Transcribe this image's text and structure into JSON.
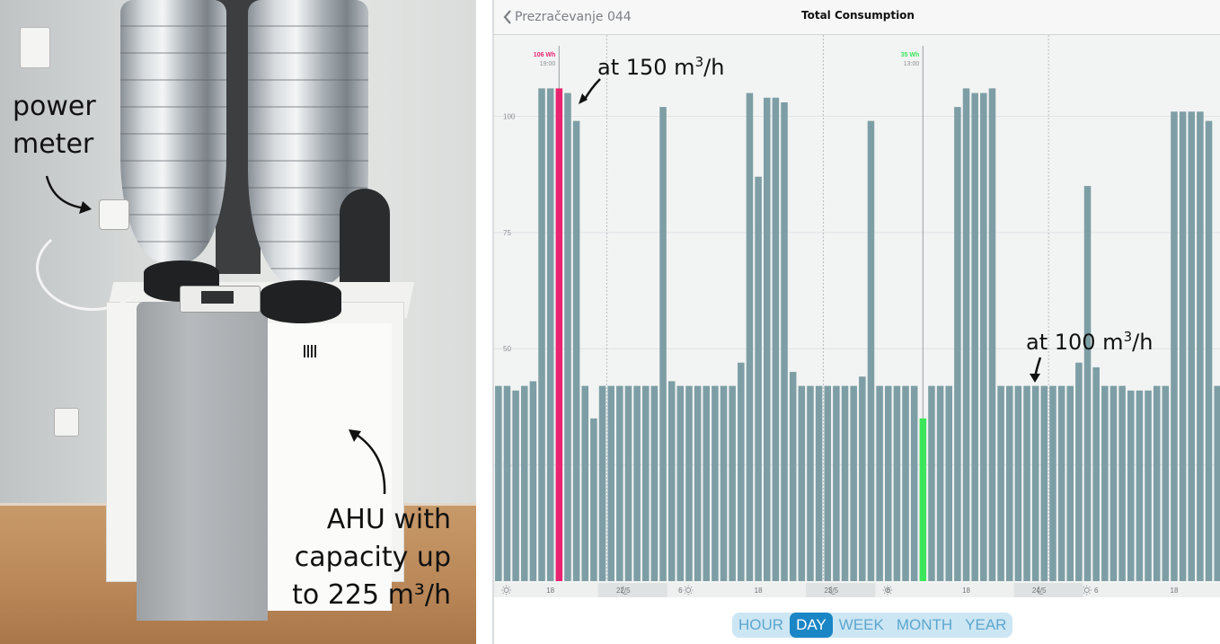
{
  "photo": {
    "power_meter_label_line1": "power",
    "power_meter_label_line2": "meter",
    "ahu_label_line1": "AHU with",
    "ahu_label_line2": "capacity up",
    "ahu_label_line3": "to 225 m³/h"
  },
  "app": {
    "back_label": "Prezračevanje 044",
    "title": "Total Consumption",
    "period_tabs": [
      "HOUR",
      "DAY",
      "WEEK",
      "MONTH",
      "YEAR"
    ],
    "active_tab": "DAY",
    "annotation_150": "at 150 m³/h",
    "annotation_100": "at 100 m³/h",
    "marker_high": {
      "value_label": "106 Wh",
      "time_label": "19:00",
      "color": "#e8236f"
    },
    "marker_low": {
      "value_label": "35 Wh",
      "time_label": "13:00",
      "color": "#3ce65a"
    },
    "bar_color": "#7d9ea5",
    "accent": "#1a86c5",
    "x_tick_labels": [
      "18",
      "22/5",
      "6",
      "18",
      "23/5",
      "6",
      "18",
      "24/5",
      "6",
      "18"
    ]
  },
  "chart_data": {
    "type": "bar",
    "ylim": [
      0,
      114
    ],
    "y_ticks": [
      25,
      50,
      75,
      100
    ],
    "highlight_high_index": 7,
    "highlight_low_index": 49,
    "values": [
      42,
      42,
      41,
      42,
      43,
      106,
      106,
      106,
      105,
      99,
      42,
      35,
      42,
      42,
      42,
      42,
      42,
      42,
      42,
      102,
      43,
      42,
      42,
      42,
      42,
      42,
      42,
      42,
      47,
      105,
      87,
      104,
      104,
      103,
      45,
      42,
      42,
      42,
      42,
      42,
      42,
      42,
      44,
      99,
      42,
      42,
      42,
      42,
      42,
      35,
      42,
      42,
      42,
      102,
      106,
      105,
      105,
      106,
      42,
      42,
      42,
      42,
      42,
      42,
      42,
      42,
      42,
      47,
      85,
      46,
      42,
      42,
      42,
      41,
      41,
      41,
      42,
      42,
      101,
      101,
      101,
      101,
      99,
      42
    ]
  }
}
